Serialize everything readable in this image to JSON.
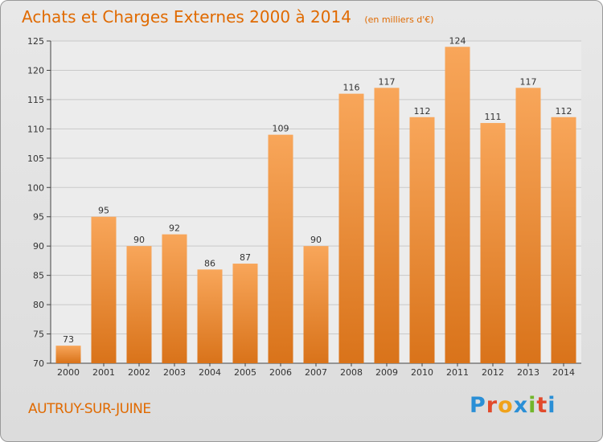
{
  "title": "Achats et Charges Externes 2000 à 2014",
  "subtitle": "(en milliers d'€)",
  "commune": "AUTRUY-SUR-JUINE",
  "logo": {
    "letters": [
      "P",
      "r",
      "o",
      "x",
      "i",
      "t",
      "i"
    ],
    "colors": [
      "#2a8fd6",
      "#e24a2b",
      "#f0a21a",
      "#2a8fd6",
      "#72b62b",
      "#e24a2b",
      "#2a8fd6"
    ]
  },
  "colors": {
    "title": "#e06a00",
    "bar_top": "#f8a65a",
    "bar_bottom": "#d9731a",
    "grid": "#c9c9c9"
  },
  "chart_data": {
    "type": "bar",
    "categories": [
      "2000",
      "2001",
      "2002",
      "2003",
      "2004",
      "2005",
      "2006",
      "2007",
      "2008",
      "2009",
      "2010",
      "2011",
      "2012",
      "2013",
      "2014"
    ],
    "values": [
      73,
      95,
      90,
      92,
      86,
      87,
      109,
      90,
      116,
      117,
      112,
      124,
      111,
      117,
      112
    ],
    "ylim": [
      70,
      125
    ],
    "yticks": [
      70,
      75,
      80,
      85,
      90,
      95,
      100,
      105,
      110,
      115,
      120,
      125
    ],
    "grid": true
  }
}
